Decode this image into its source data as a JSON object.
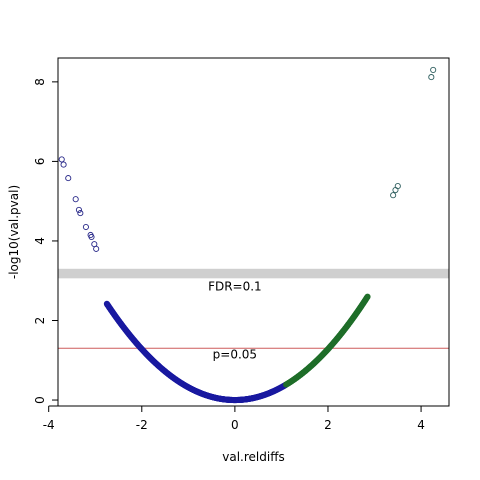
{
  "chart_data": {
    "type": "scatter",
    "title": "",
    "xlabel": "val.reldiffs",
    "ylabel": "-log10(val.pval)",
    "xlim": [
      -3.8,
      4.6
    ],
    "ylim": [
      -0.15,
      8.6
    ],
    "xticks": [
      -4,
      -2,
      0,
      2,
      4
    ],
    "yticks": [
      0,
      2,
      4,
      6,
      8
    ],
    "grid": false,
    "legend": "none",
    "curve": {
      "description_note": "points follow y = 0.32 * x^2 (approx), densely sampled",
      "coef": 0.32,
      "dense_x_range": [
        -2.75,
        2.85
      ],
      "color_negative_side": "#1a1aa0",
      "color_positive_side": "#1f6e2a"
    },
    "isolated_points": [
      {
        "x": -3.72,
        "y": 6.05
      },
      {
        "x": -3.68,
        "y": 5.92
      },
      {
        "x": -3.58,
        "y": 5.58
      },
      {
        "x": -3.42,
        "y": 5.05
      },
      {
        "x": -3.35,
        "y": 4.78
      },
      {
        "x": -3.32,
        "y": 4.7
      },
      {
        "x": -3.2,
        "y": 4.35
      },
      {
        "x": -3.1,
        "y": 4.15
      },
      {
        "x": -3.08,
        "y": 4.1
      },
      {
        "x": -3.02,
        "y": 3.92
      },
      {
        "x": -2.98,
        "y": 3.8
      },
      {
        "x": 3.4,
        "y": 5.15
      },
      {
        "x": 3.45,
        "y": 5.28
      },
      {
        "x": 3.5,
        "y": 5.38
      },
      {
        "x": 4.22,
        "y": 8.12
      },
      {
        "x": 4.26,
        "y": 8.3
      }
    ],
    "reference_lines": [
      {
        "label": "p=0.05",
        "y": 1.301,
        "color": "#cd5c5c",
        "style": "solid"
      },
      {
        "label": "FDR=0.1",
        "y": 3.18,
        "band_halfwidth": 0.12,
        "color": "#cfcfcf",
        "style": "band"
      }
    ],
    "annotations": [
      {
        "text": "FDR=0.1",
        "x": 0,
        "y": 2.75
      },
      {
        "text": "p=0.05",
        "x": 0,
        "y": 1.05
      }
    ]
  }
}
